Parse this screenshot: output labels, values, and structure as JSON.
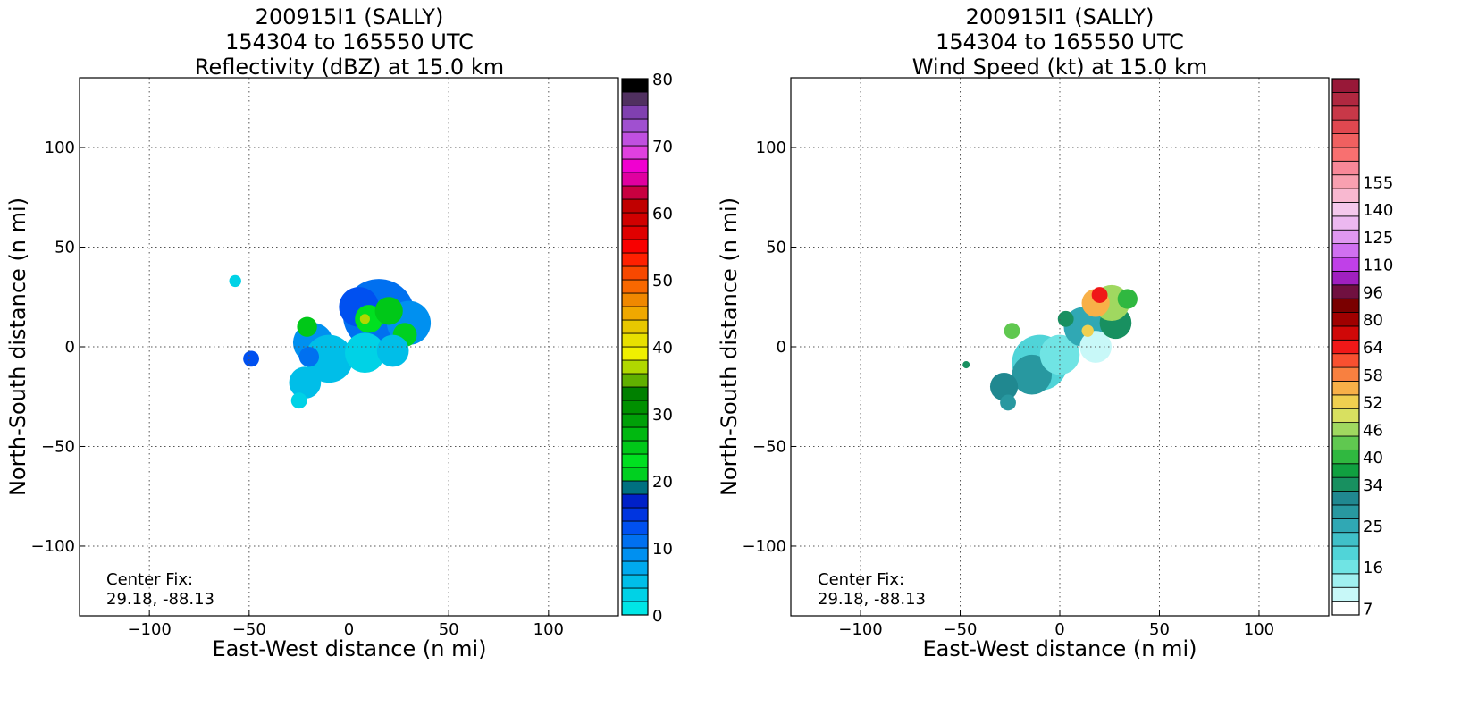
{
  "chart_data": [
    {
      "type": "heatmap",
      "title": [
        "200915I1 (SALLY)",
        "154304 to 165550 UTC",
        "Reflectivity (dBZ) at 15.0 km"
      ],
      "xlabel": "East-West distance (n mi)",
      "ylabel": "North-South distance (n mi)",
      "xlim": [
        -135,
        135
      ],
      "ylim": [
        -135,
        135
      ],
      "xticks": [
        -100,
        -50,
        0,
        50,
        100
      ],
      "yticks": [
        -100,
        -50,
        0,
        50,
        100
      ],
      "xtick_labels": [
        "−100",
        "−50",
        "0",
        "50",
        "100"
      ],
      "ytick_labels": [
        "−100",
        "−50",
        "0",
        "50",
        "100"
      ],
      "grid": true,
      "annotation": [
        "Center Fix:",
        "29.18, -88.13"
      ],
      "colorbar": {
        "min": 0,
        "max": 80,
        "tick_values": [
          0,
          10,
          20,
          30,
          40,
          50,
          60,
          70,
          80
        ],
        "tick_labels": [
          "0",
          "10",
          "20",
          "30",
          "40",
          "50",
          "60",
          "70",
          "80"
        ],
        "colors": [
          "#00e6e6",
          "#00d2e6",
          "#00bee8",
          "#00aaee",
          "#0090f0",
          "#0070f0",
          "#0050f0",
          "#0035e0",
          "#0020c8",
          "#007080",
          "#00d020",
          "#00e020",
          "#00c818",
          "#00b810",
          "#00a008",
          "#009000",
          "#008000",
          "#60b000",
          "#b0d800",
          "#f0f000",
          "#e8e000",
          "#e8c800",
          "#f0a800",
          "#f08800",
          "#f86800",
          "#f84800",
          "#ff2000",
          "#f80000",
          "#e00000",
          "#d00000",
          "#c00000",
          "#c80040",
          "#e000a0",
          "#f000d0",
          "#e040e0",
          "#c050e0",
          "#a050d0",
          "#8040b0",
          "#503060",
          "#000000"
        ]
      },
      "field": [
        {
          "x": 15,
          "y": 16,
          "r": 18,
          "value": 10
        },
        {
          "x": 30,
          "y": 12,
          "r": 11,
          "value": 8
        },
        {
          "x": 5,
          "y": 20,
          "r": 10,
          "value": 12
        },
        {
          "x": 10,
          "y": 14,
          "r": 7,
          "value": 22
        },
        {
          "x": 20,
          "y": 18,
          "r": 7,
          "value": 25
        },
        {
          "x": 28,
          "y": 6,
          "r": 6,
          "value": 20
        },
        {
          "x": 8,
          "y": 14,
          "r": 2.5,
          "value": 36
        },
        {
          "x": -18,
          "y": 2,
          "r": 10,
          "value": 9
        },
        {
          "x": -10,
          "y": -6,
          "r": 12,
          "value": 4
        },
        {
          "x": 8,
          "y": -3,
          "r": 10,
          "value": 3
        },
        {
          "x": 22,
          "y": -2,
          "r": 8,
          "value": 5
        },
        {
          "x": -22,
          "y": -18,
          "r": 8,
          "value": 4
        },
        {
          "x": -25,
          "y": -27,
          "r": 4,
          "value": 3
        },
        {
          "x": -21,
          "y": 10,
          "r": 5,
          "value": 24
        },
        {
          "x": -49,
          "y": -6,
          "r": 4,
          "value": 12
        },
        {
          "x": -57,
          "y": 33,
          "r": 3,
          "value": 3
        },
        {
          "x": -20,
          "y": -5,
          "r": 5,
          "value": 10
        }
      ]
    },
    {
      "type": "heatmap",
      "title": [
        "200915I1 (SALLY)",
        "154304 to 165550 UTC",
        "Wind Speed (kt) at 15.0 km"
      ],
      "xlabel": "East-West distance (n mi)",
      "ylabel": "North-South distance (n mi)",
      "xlim": [
        -135,
        135
      ],
      "ylim": [
        -135,
        135
      ],
      "xticks": [
        -100,
        -50,
        0,
        50,
        100
      ],
      "yticks": [
        -100,
        -50,
        0,
        50,
        100
      ],
      "xtick_labels": [
        "−100",
        "−50",
        "0",
        "50",
        "100"
      ],
      "ytick_labels": [
        "−100",
        "−50",
        "0",
        "50",
        "100"
      ],
      "grid": true,
      "annotation": [
        "Center Fix:",
        "29.18, -88.13"
      ],
      "colorbar": {
        "tick_labels": [
          "7",
          "16",
          "25",
          "34",
          "40",
          "46",
          "52",
          "58",
          "64",
          "80",
          "96",
          "110",
          "125",
          "140",
          "155"
        ],
        "tick_bins": [
          0,
          3,
          6,
          9,
          11,
          13,
          15,
          17,
          19,
          21,
          23,
          25,
          27,
          29,
          31
        ],
        "colors": [
          "#ffffff",
          "#c8f8f8",
          "#a0f0f0",
          "#70e4e4",
          "#50d4d8",
          "#40c0c8",
          "#30a8b4",
          "#2898a0",
          "#208890",
          "#189060",
          "#10a040",
          "#30b840",
          "#60c850",
          "#a0d860",
          "#d8e060",
          "#f0d050",
          "#f8b048",
          "#f88040",
          "#f85030",
          "#f01818",
          "#d00808",
          "#a00000",
          "#7a0000",
          "#701040",
          "#a020c0",
          "#c040e8",
          "#d070f0",
          "#e098f0",
          "#ecb8f0",
          "#f4c8ec",
          "#f8b8d0",
          "#f8a0b0",
          "#f88898",
          "#f87070",
          "#f06060",
          "#e04850",
          "#c83848",
          "#b02840",
          "#981838"
        ]
      },
      "field": [
        {
          "x": -10,
          "y": -8,
          "r": 14,
          "value": 4
        },
        {
          "x": -14,
          "y": -14,
          "r": 10,
          "value": 7
        },
        {
          "x": 0,
          "y": -4,
          "r": 10,
          "value": 3
        },
        {
          "x": -28,
          "y": -20,
          "r": 7,
          "value": 8
        },
        {
          "x": -26,
          "y": -28,
          "r": 4,
          "value": 7
        },
        {
          "x": 12,
          "y": 10,
          "r": 10,
          "value": 6
        },
        {
          "x": 18,
          "y": 0,
          "r": 8,
          "value": 1
        },
        {
          "x": 28,
          "y": 12,
          "r": 8,
          "value": 9
        },
        {
          "x": 26,
          "y": 22,
          "r": 9,
          "value": 13
        },
        {
          "x": 18,
          "y": 22,
          "r": 7,
          "value": 16
        },
        {
          "x": 20,
          "y": 26,
          "r": 4,
          "value": 19
        },
        {
          "x": 34,
          "y": 24,
          "r": 5,
          "value": 11
        },
        {
          "x": 3,
          "y": 14,
          "r": 4,
          "value": 9
        },
        {
          "x": -24,
          "y": 8,
          "r": 4,
          "value": 12
        },
        {
          "x": -47,
          "y": -9,
          "r": 1.8,
          "value": 9
        },
        {
          "x": 14,
          "y": 8,
          "r": 3,
          "value": 15
        }
      ]
    }
  ]
}
